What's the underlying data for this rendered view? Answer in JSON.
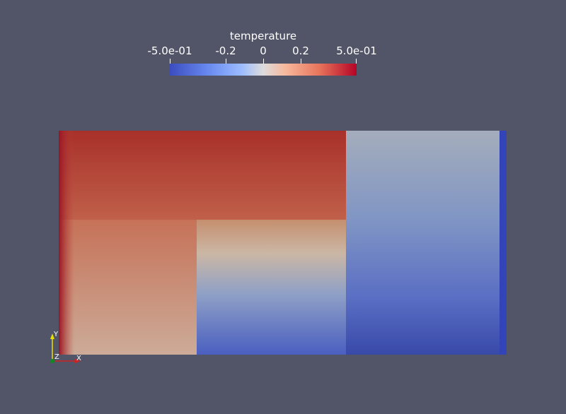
{
  "chart_data": {
    "type": "heatmap",
    "title": "temperature",
    "field": "temperature",
    "range": [
      -0.5,
      0.5
    ],
    "colormap": [
      "#3b4cc0",
      "#6788ee",
      "#9abbff",
      "#dddcdc",
      "#f7b89c",
      "#e7745b",
      "#b40426"
    ],
    "colorbar_ticks": [
      {
        "value": -0.5,
        "label": "-5.0e-01"
      },
      {
        "value": -0.2,
        "label": "-0.2"
      },
      {
        "value": 0,
        "label": "0"
      },
      {
        "value": 0.2,
        "label": "0.2"
      },
      {
        "value": 0.5,
        "label": "5.0e-01"
      }
    ],
    "regions": [
      {
        "name": "upper-left-hot",
        "value_top": 0.45,
        "value_bottom": 0.3
      },
      {
        "name": "lower-left-warm",
        "value": 0.22
      },
      {
        "name": "center-gradient",
        "value_top": 0.3,
        "value_bottom": -0.35
      },
      {
        "name": "right-cool",
        "value_top": -0.05,
        "value_bottom": -0.45
      },
      {
        "name": "right-edge",
        "value": -0.5
      }
    ]
  },
  "axes_triad": {
    "x_label": "X",
    "y_label": "Y",
    "z_label": "Z",
    "x_color": "#cc2222",
    "y_color": "#e8e000",
    "z_color": "#118822"
  },
  "background_color": "#525568"
}
